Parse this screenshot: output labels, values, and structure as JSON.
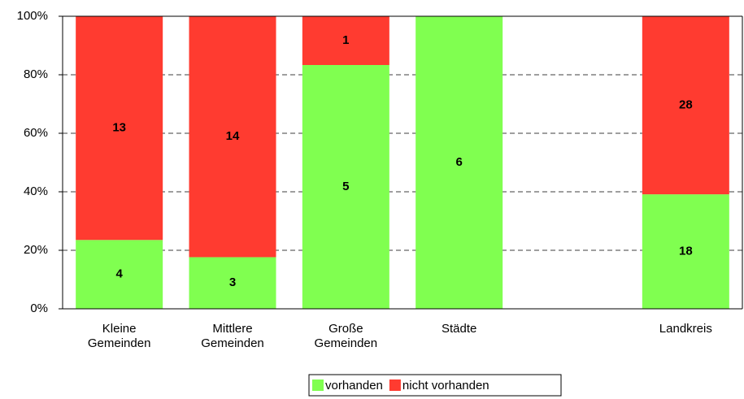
{
  "chart_data": {
    "type": "bar",
    "stacking": "percent",
    "categories": [
      "Kleine\nGemeinden",
      "Mittlere\nGemeinden",
      "Große\nGemeinden",
      "Städte",
      null,
      "Landkreis"
    ],
    "series": [
      {
        "name": "vorhanden",
        "color": "#80ff50",
        "values": [
          4,
          3,
          5,
          6,
          null,
          18
        ]
      },
      {
        "name": "nicht vorhanden",
        "color": "#ff3b30",
        "values": [
          13,
          14,
          1,
          null,
          null,
          28
        ]
      }
    ],
    "ylim": [
      0,
      100
    ],
    "yticks": [
      {
        "value": 0,
        "label": "0%"
      },
      {
        "value": 20,
        "label": "20%"
      },
      {
        "value": 40,
        "label": "40%"
      },
      {
        "value": 60,
        "label": "60%"
      },
      {
        "value": 80,
        "label": "80%"
      },
      {
        "value": 100,
        "label": "100%"
      }
    ],
    "grid": true,
    "legend": "bottom"
  }
}
